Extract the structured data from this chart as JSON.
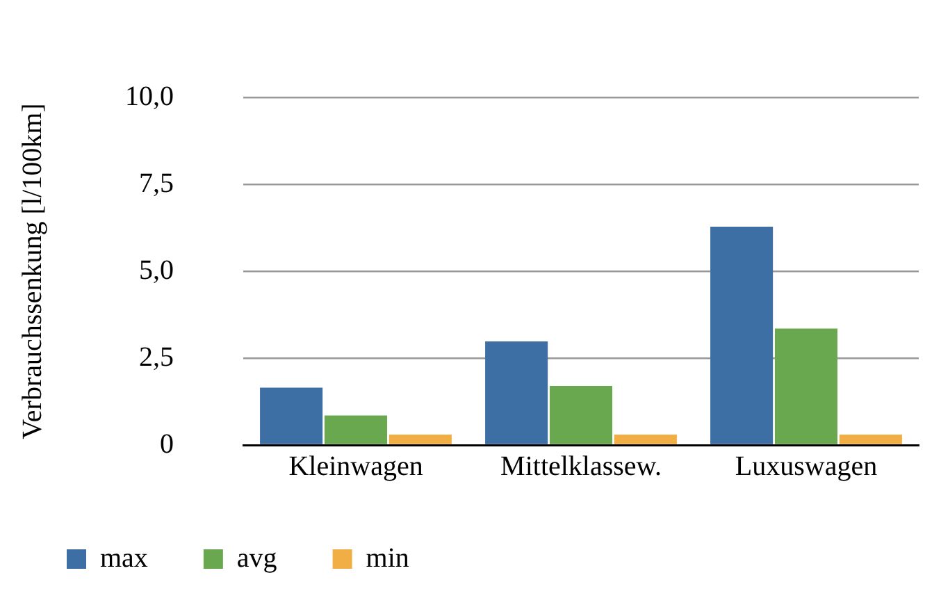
{
  "chart_data": {
    "type": "bar",
    "ylabel": "Verbrauchssenkung [l/100km]",
    "categories": [
      "Kleinwagen",
      "Mittelklassew.",
      "Luxuswagen"
    ],
    "series": [
      {
        "name": "max",
        "color": "#3e6fa4",
        "values": [
          1.65,
          2.98,
          6.28
        ]
      },
      {
        "name": "avg",
        "color": "#6aa84f",
        "values": [
          0.85,
          1.7,
          3.35
        ]
      },
      {
        "name": "min",
        "color": "#f0ae45",
        "values": [
          0.3,
          0.3,
          0.3
        ]
      }
    ],
    "ylim": [
      0,
      10
    ],
    "yticks": [
      {
        "value": 0,
        "label": "0"
      },
      {
        "value": 2.5,
        "label": "2,5"
      },
      {
        "value": 5,
        "label": "5,0"
      },
      {
        "value": 7.5,
        "label": "7,5"
      },
      {
        "value": 10,
        "label": "10,0"
      }
    ],
    "grid": "y",
    "legend": "bottom left"
  }
}
